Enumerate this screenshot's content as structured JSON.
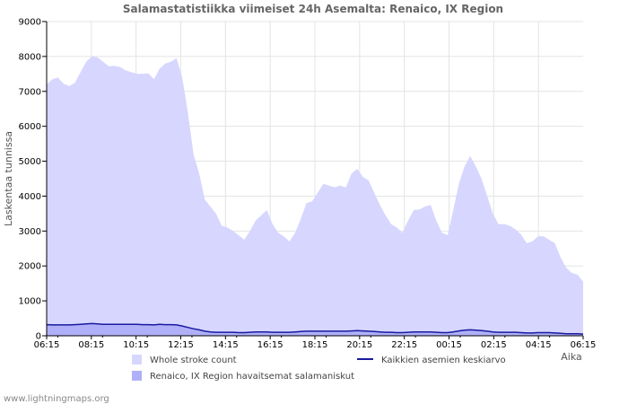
{
  "chart_data": {
    "type": "area",
    "title": "Salamastatistiikka viimeiset 24h Asemalta: Renaico, IX Region",
    "ylabel": "Laskentaa tunnissa",
    "xlabel": "Aika",
    "ylim": [
      0,
      9000
    ],
    "y_ticks": [
      "0",
      "1000",
      "2000",
      "3000",
      "4000",
      "5000",
      "6000",
      "7000",
      "8000",
      "9000"
    ],
    "x_ticks": [
      "06:15",
      "08:15",
      "10:15",
      "12:15",
      "14:15",
      "16:15",
      "18:15",
      "20:15",
      "22:15",
      "00:15",
      "02:15",
      "04:15",
      "06:15"
    ],
    "grid": true,
    "series": [
      {
        "name": "Whole stroke count",
        "kind": "area",
        "color": "#d6d6ff",
        "values": [
          7200,
          7350,
          7400,
          7220,
          7150,
          7250,
          7550,
          7850,
          8000,
          7980,
          7850,
          7720,
          7730,
          7700,
          7600,
          7550,
          7500,
          7500,
          7520,
          7350,
          7650,
          7800,
          7850,
          7950,
          7400,
          6400,
          5200,
          4650,
          3900,
          3700,
          3500,
          3150,
          3100,
          3000,
          2880,
          2750,
          3000,
          3300,
          3450,
          3600,
          3200,
          2950,
          2850,
          2700,
          2950,
          3350,
          3800,
          3850,
          4100,
          4350,
          4300,
          4250,
          4300,
          4250,
          4650,
          4780,
          4550,
          4450,
          4100,
          3750,
          3450,
          3200,
          3100,
          2950,
          3300,
          3600,
          3620,
          3700,
          3750,
          3300,
          2950,
          2880,
          3600,
          4350,
          4850,
          5150,
          4850,
          4500,
          4000,
          3500,
          3200,
          3200,
          3150,
          3050,
          2900,
          2650,
          2700,
          2850,
          2850,
          2750,
          2650,
          2250,
          1950,
          1800,
          1750,
          1550
        ]
      },
      {
        "name": "Renaico, IX Region havaitsemat salamaniskut",
        "kind": "area",
        "color": "#b0b0f8",
        "values": [
          320,
          310,
          310,
          310,
          310,
          320,
          330,
          340,
          350,
          340,
          330,
          330,
          330,
          330,
          330,
          330,
          330,
          320,
          320,
          310,
          330,
          320,
          320,
          310,
          280,
          240,
          200,
          170,
          130,
          110,
          100,
          100,
          100,
          100,
          90,
          90,
          100,
          110,
          110,
          110,
          100,
          100,
          100,
          100,
          110,
          120,
          130,
          130,
          130,
          130,
          130,
          130,
          130,
          130,
          140,
          150,
          140,
          130,
          120,
          110,
          100,
          100,
          90,
          90,
          100,
          110,
          110,
          110,
          110,
          100,
          90,
          90,
          110,
          140,
          160,
          170,
          160,
          150,
          130,
          110,
          100,
          100,
          100,
          100,
          90,
          80,
          80,
          90,
          90,
          90,
          80,
          70,
          60,
          60,
          60,
          50
        ]
      },
      {
        "name": "Kaikkien asemien keskiarvo",
        "kind": "line",
        "color": "#1a1aa0",
        "values": [
          320,
          310,
          310,
          310,
          310,
          320,
          330,
          340,
          350,
          340,
          330,
          330,
          330,
          330,
          330,
          330,
          330,
          320,
          320,
          310,
          330,
          320,
          320,
          310,
          280,
          240,
          200,
          170,
          130,
          110,
          100,
          100,
          100,
          100,
          90,
          90,
          100,
          110,
          110,
          110,
          100,
          100,
          100,
          100,
          110,
          120,
          130,
          130,
          130,
          130,
          130,
          130,
          130,
          130,
          140,
          150,
          140,
          130,
          120,
          110,
          100,
          100,
          90,
          90,
          100,
          110,
          110,
          110,
          110,
          100,
          90,
          90,
          110,
          140,
          160,
          170,
          160,
          150,
          130,
          110,
          100,
          100,
          100,
          100,
          90,
          80,
          80,
          90,
          90,
          90,
          80,
          70,
          60,
          60,
          60,
          50
        ]
      }
    ]
  },
  "legend": {
    "whole_stroke": "Whole stroke count",
    "station": "Renaico, IX Region havaitsemat salamaniskut",
    "average": "Kaikkien asemien keskiarvo"
  },
  "footer": "www.lightningmaps.org"
}
